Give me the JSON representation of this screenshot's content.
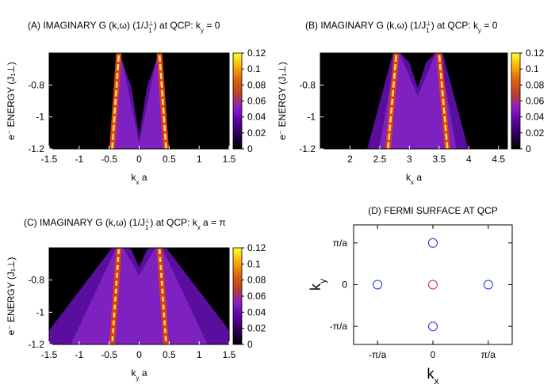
{
  "colorbar": {
    "ticks": [
      0,
      0.02,
      0.04,
      0.06,
      0.08,
      0.1,
      0.12
    ],
    "labels": [
      "0",
      "0.02",
      "0.04",
      "0.06",
      "0.08",
      "0.1",
      "0.12"
    ],
    "stops": [
      "#000000",
      "#2a0050",
      "#5a00a0",
      "#8a1ec8",
      "#b8402a",
      "#e06010",
      "#f8b000",
      "#ffff30"
    ]
  },
  "chart_data": [
    {
      "type": "heatmap",
      "title_main": "(A) IMAGINARY G (k,ω) (1/J",
      "title_sub": "1",
      "title_sup": "⊥",
      "title_tail": ") at QCP: k",
      "title_tail_sub": "y",
      "title_end": " = 0",
      "xlabel_main": "k",
      "xlabel_sub": "x",
      "xlabel_tail": " a",
      "ylabel": "e⁻ ENERGY (J₁⊥)",
      "xlim": [
        -1.5,
        1.5
      ],
      "ylim": [
        -1.2,
        -0.6
      ],
      "xticks": [
        -1.5,
        -1,
        -0.5,
        0,
        0.5,
        1,
        1.5
      ],
      "xtick_labels": [
        "-1.5",
        "-1",
        "-0.5",
        "0",
        "0.5",
        "1",
        "1.5"
      ],
      "yticks": [
        -0.8,
        -1,
        -1.2
      ],
      "ytick_labels": [
        "-0.8",
        "-1",
        "-1.2"
      ],
      "dispersion_center": 0,
      "peak_k_at_top": 0.33,
      "spread_at_bottom": 0.15,
      "fill_dip": -1.12
    },
    {
      "type": "heatmap",
      "title_main": "(B) IMAGINARY G (k,ω) (1/J",
      "title_sub": "1",
      "title_sup": "⊥",
      "title_tail": ") at QCP: k",
      "title_tail_sub": "y",
      "title_end": " = 0",
      "xlabel_main": "k",
      "xlabel_sub": "x",
      "xlabel_tail": " a",
      "ylabel": "e⁻ ENERGY (J₁⊥)",
      "xlim": [
        1.5,
        4.65
      ],
      "ylim": [
        -1.2,
        -0.6
      ],
      "xticks": [
        2,
        2.5,
        3,
        3.5,
        4,
        4.5
      ],
      "xtick_labels": [
        "2",
        "2.5",
        "3",
        "3.5",
        "4",
        "4.5"
      ],
      "yticks": [
        -0.8,
        -1,
        -1.2
      ],
      "ytick_labels": [
        "-0.8",
        "-1",
        "-1.2"
      ],
      "dispersion_center": 3.14,
      "peak_k_at_top": 0.35,
      "spread_at_bottom": 0.5,
      "fill_dip": -0.82
    },
    {
      "type": "heatmap",
      "title_main": "(C) IMAGINARY G (k,ω) (1/J",
      "title_sub": "1",
      "title_sup": "⊥",
      "title_tail": ") at QCP: k",
      "title_tail_sub": "x",
      "title_end": " a = π",
      "xlabel_main": "k",
      "xlabel_sub": "y",
      "xlabel_tail": " a",
      "ylabel": "e⁻ ENERGY (J₁⊥)",
      "xlim": [
        -1.5,
        1.5
      ],
      "ylim": [
        -1.2,
        -0.6
      ],
      "xticks": [
        -1.5,
        -1,
        -0.5,
        0,
        0.5,
        1,
        1.5
      ],
      "xtick_labels": [
        "-1.5",
        "-1",
        "-0.5",
        "0",
        "0.5",
        "1",
        "1.5"
      ],
      "yticks": [
        -0.8,
        -1,
        -1.2
      ],
      "ytick_labels": [
        "-0.8",
        "-1",
        "-1.2"
      ],
      "dispersion_center": 0,
      "peak_k_at_top": 0.33,
      "spread_at_bottom": 1.35,
      "fill_dip": -0.72
    },
    {
      "type": "scatter",
      "title": "(D) FERMI SURFACE AT QCP",
      "xlabel_main": "k",
      "xlabel_sub": "x",
      "ylabel_main": "k",
      "ylabel_sub": "y",
      "xlim": [
        -4.5,
        4.5
      ],
      "ylim": [
        -4.5,
        4.5
      ],
      "xticks": [
        -3.1416,
        0,
        3.1416
      ],
      "xtick_labels": [
        "-π/a",
        "0",
        "π/a"
      ],
      "yticks": [
        3.1416,
        0,
        -3.1416
      ],
      "ytick_labels": [
        "π/a",
        "0",
        "-π/a"
      ],
      "points": [
        {
          "x": 0,
          "y": 3.1416,
          "color": "#2030d0"
        },
        {
          "x": -3.1416,
          "y": 0,
          "color": "#2030d0"
        },
        {
          "x": 0,
          "y": 0,
          "color": "#e02020"
        },
        {
          "x": 3.1416,
          "y": 0,
          "color": "#2030d0"
        },
        {
          "x": 0,
          "y": -3.1416,
          "color": "#2030d0"
        }
      ]
    }
  ]
}
